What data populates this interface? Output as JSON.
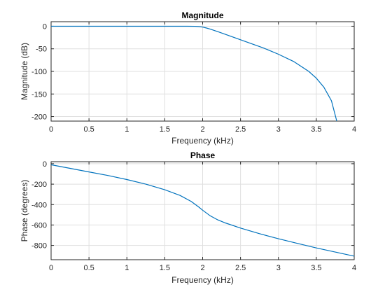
{
  "chart_data": [
    {
      "type": "line",
      "title": "Magnitude",
      "xlabel": "Frequency (kHz)",
      "ylabel": "Magnitude (dB)",
      "xlim": [
        0,
        4
      ],
      "ylim": [
        -210,
        10
      ],
      "xticks": [
        0,
        0.5,
        1,
        1.5,
        2,
        2.5,
        3,
        3.5,
        4
      ],
      "xticklabels": [
        "0",
        "0.5",
        "1",
        "1.5",
        "2",
        "2.5",
        "3",
        "3.5",
        "4"
      ],
      "yticks": [
        0,
        -50,
        -100,
        -150,
        -200
      ],
      "yticklabels": [
        "0",
        "-50",
        "-100",
        "-150",
        "-200"
      ],
      "grid": true,
      "color": "#0072bd",
      "x": [
        0,
        0.5,
        1.0,
        1.5,
        1.8,
        1.9,
        1.95,
        2.0,
        2.05,
        2.1,
        2.2,
        2.3,
        2.4,
        2.5,
        2.6,
        2.8,
        3.0,
        3.2,
        3.4,
        3.5,
        3.6,
        3.7,
        3.77
      ],
      "y": [
        0,
        0,
        0,
        0,
        0,
        -0.2,
        -0.8,
        -2,
        -4,
        -6.5,
        -12,
        -18,
        -24,
        -30,
        -36,
        -48,
        -62,
        -78,
        -100,
        -115,
        -135,
        -165,
        -210
      ]
    },
    {
      "type": "line",
      "title": "Phase",
      "xlabel": "Frequency (kHz)",
      "ylabel": "Phase (degrees)",
      "xlim": [
        0,
        4
      ],
      "ylim": [
        -940,
        20
      ],
      "xticks": [
        0,
        0.5,
        1,
        1.5,
        2,
        2.5,
        3,
        3.5,
        4
      ],
      "xticklabels": [
        "0",
        "0.5",
        "1",
        "1.5",
        "2",
        "2.5",
        "3",
        "3.5",
        "4"
      ],
      "yticks": [
        0,
        -200,
        -400,
        -600,
        -800
      ],
      "yticklabels": [
        "0",
        "-200",
        "-400",
        "-600",
        "-800"
      ],
      "grid": true,
      "color": "#0072bd",
      "x": [
        0,
        0.25,
        0.5,
        0.75,
        1.0,
        1.25,
        1.5,
        1.7,
        1.85,
        1.95,
        2.0,
        2.1,
        2.2,
        2.3,
        2.5,
        2.75,
        3.0,
        3.25,
        3.5,
        3.75,
        4.0
      ],
      "y": [
        -10,
        -45,
        -80,
        -115,
        -155,
        -200,
        -255,
        -310,
        -370,
        -425,
        -455,
        -510,
        -550,
        -580,
        -630,
        -685,
        -735,
        -780,
        -825,
        -865,
        -905
      ]
    }
  ]
}
